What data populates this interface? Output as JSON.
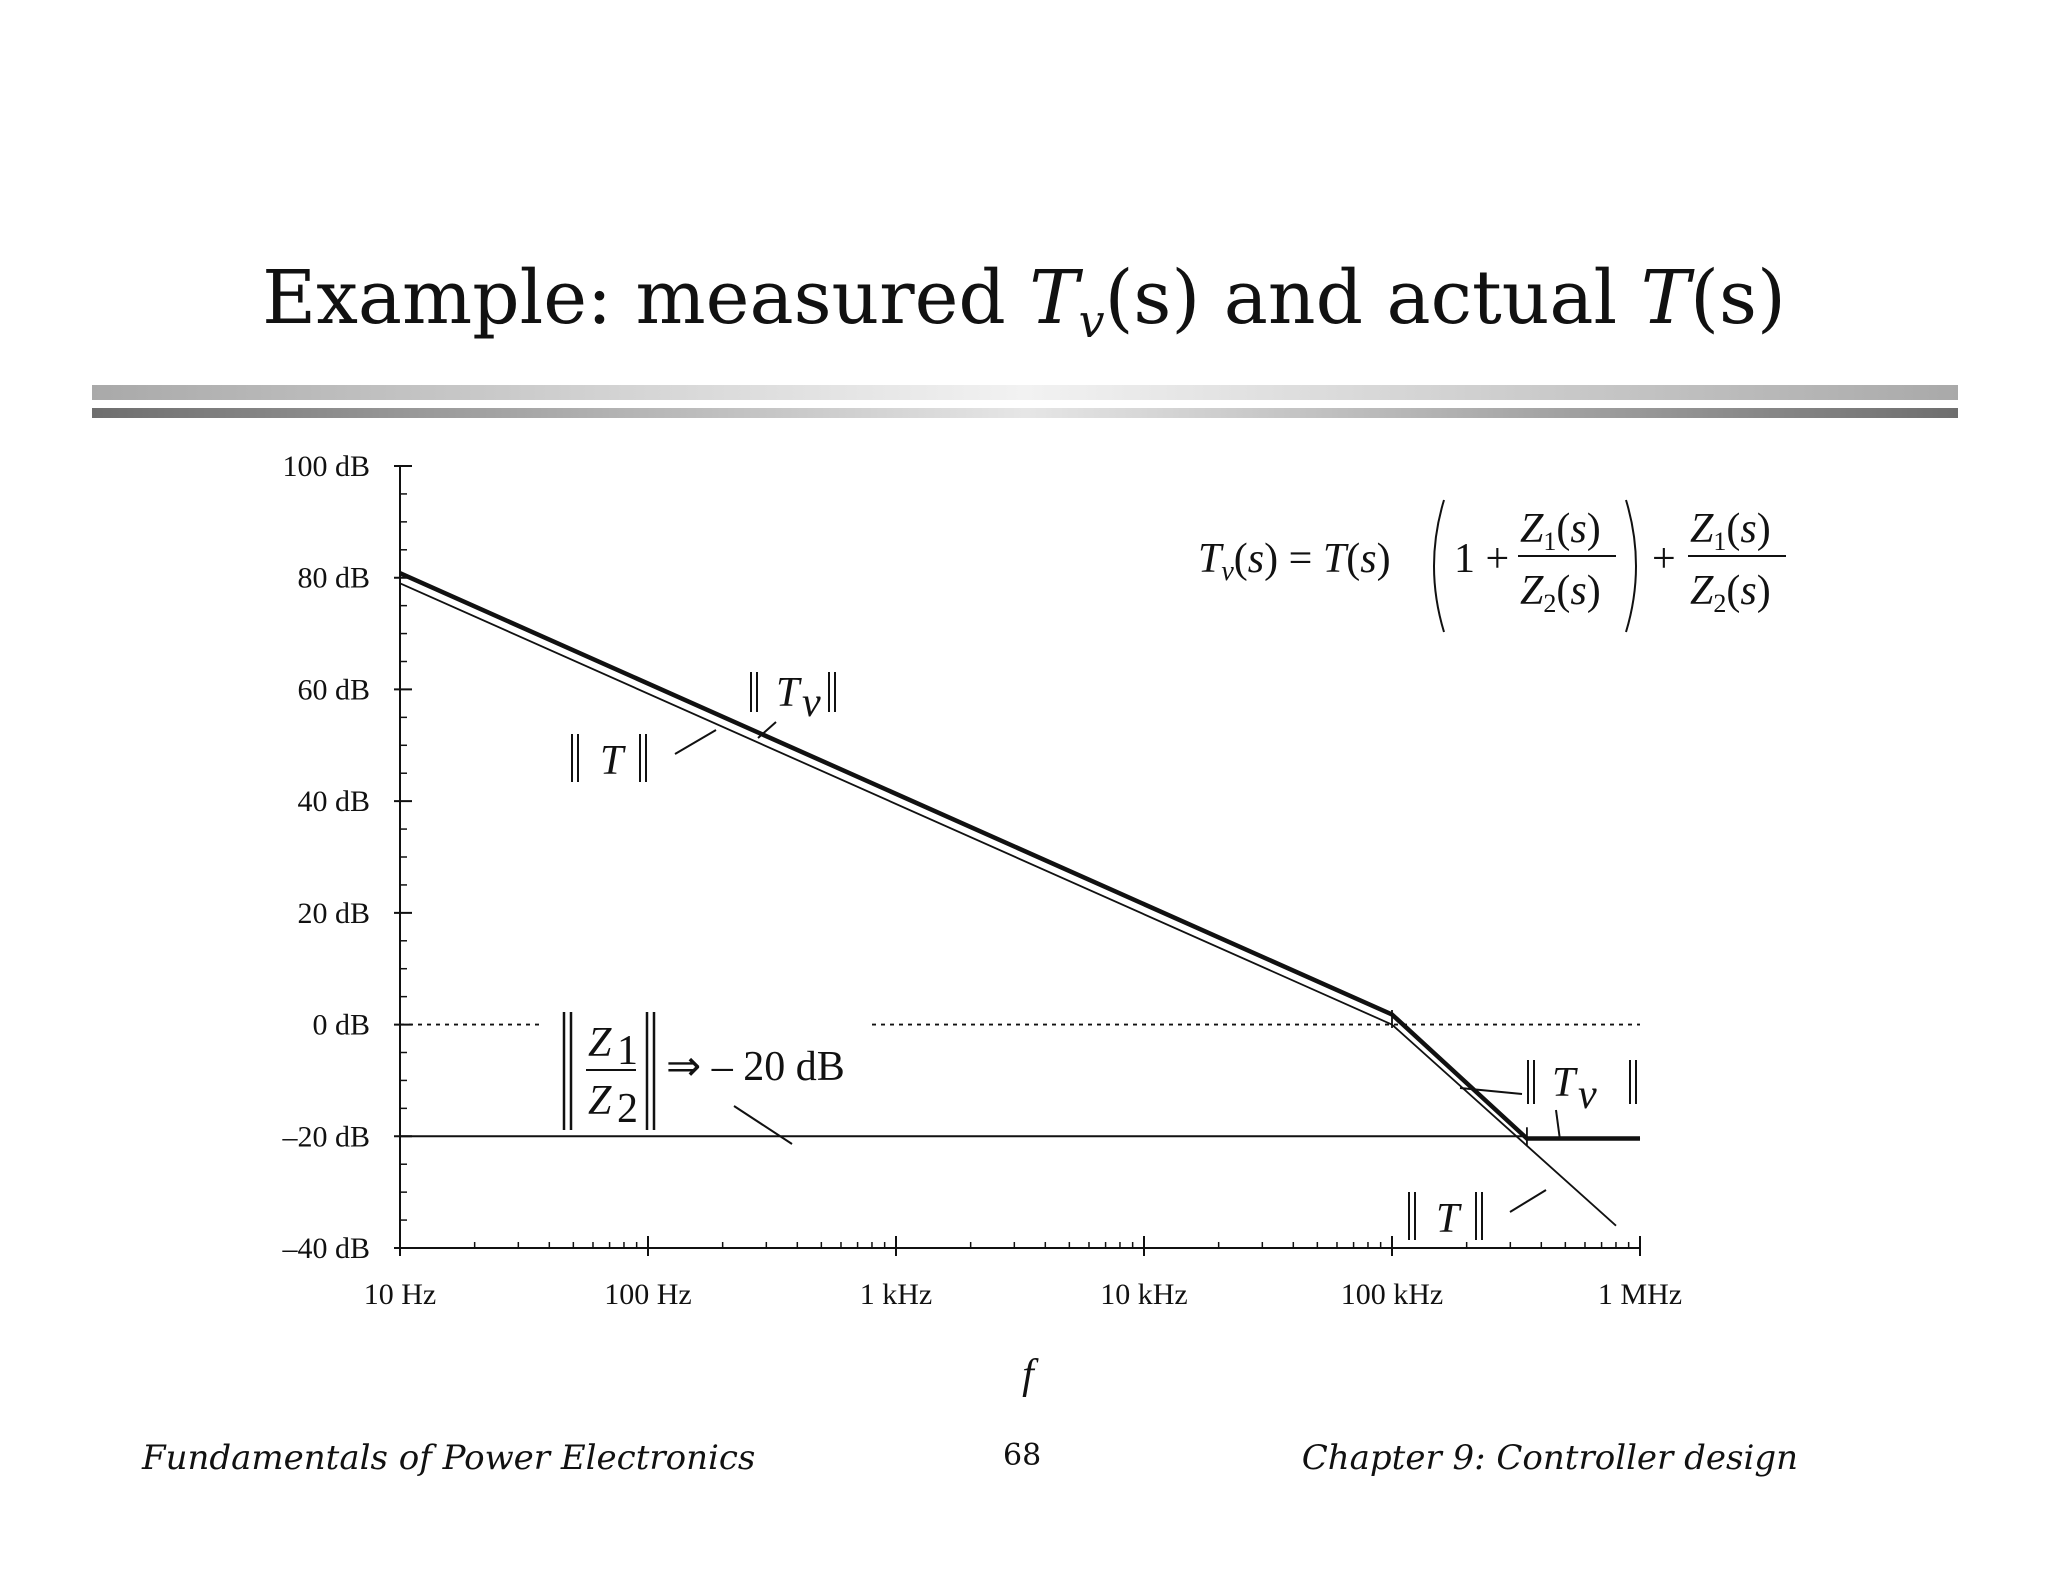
{
  "slide": {
    "title_prefix": "Example: measured ",
    "title_T": "T",
    "title_v": "v",
    "title_s1": "(s)",
    "title_mid": " and actual ",
    "title_T2": "T",
    "title_s2": "(s)"
  },
  "footer": {
    "left": "Fundamentals of Power Electronics",
    "page": "68",
    "right": "Chapter 9: Controller design"
  },
  "chart_data": {
    "type": "line",
    "x_scale": "log",
    "xlim_hz": [
      10,
      1000000
    ],
    "ylim_db": [
      -40,
      100
    ],
    "y_ticks": [
      {
        "value": 100,
        "label": "100 dB"
      },
      {
        "value": 80,
        "label": "80 dB"
      },
      {
        "value": 60,
        "label": "60 dB"
      },
      {
        "value": 40,
        "label": "40 dB"
      },
      {
        "value": 20,
        "label": "20 dB"
      },
      {
        "value": 0,
        "label": "0 dB"
      },
      {
        "value": -20,
        "label": "–20 dB"
      },
      {
        "value": -40,
        "label": "–40 dB"
      }
    ],
    "x_ticks": [
      {
        "value": 10,
        "label": "10 Hz"
      },
      {
        "value": 100,
        "label": "100 Hz"
      },
      {
        "value": 1000,
        "label": "1 kHz"
      },
      {
        "value": 10000,
        "label": "10 kHz"
      },
      {
        "value": 100000,
        "label": "100 kHz"
      },
      {
        "value": 1000000,
        "label": "1 MHz"
      }
    ],
    "xlabel": "f",
    "series": [
      {
        "name": "|| T ||",
        "points": [
          [
            10,
            79
          ],
          [
            100000,
            0
          ],
          [
            800000,
            -36
          ]
        ]
      },
      {
        "name": "|| Tv ||",
        "points": [
          [
            10,
            80.8
          ],
          [
            100000,
            1.8
          ],
          [
            350000,
            -20.4
          ],
          [
            1000000,
            -20.4
          ]
        ]
      },
      {
        "name": "|| Z1/Z2 ||",
        "points": [
          [
            10,
            -20
          ],
          [
            350000,
            -20
          ]
        ]
      }
    ],
    "reference_lines": [
      {
        "value": 0,
        "style": "dotted"
      }
    ],
    "annotations": {
      "tv_label": "|| Tv ||",
      "t_label": "|| T ||",
      "ratio_arrow": "⇒ – 20 dB",
      "formula": "Tv(s) = T(s) (1 + Z1(s)/Z2(s)) + Z1(s)/Z2(s)"
    }
  }
}
